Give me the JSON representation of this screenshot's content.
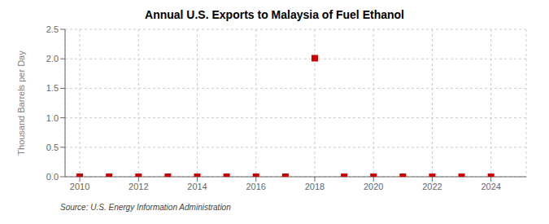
{
  "chart_data": {
    "type": "scatter",
    "title": "Annual U.S. Exports to Malaysia of Fuel Ethanol",
    "y_label": "Thousand Barrels per Day",
    "annotations": [
      "Source: U.S. Energy Information Administration"
    ],
    "x": [
      2010,
      2011,
      2012,
      2013,
      2014,
      2015,
      2016,
      2017,
      2018,
      2019,
      2020,
      2021,
      2022,
      2023,
      2024
    ],
    "values": [
      0.0,
      0.0,
      0.0,
      0.0,
      0.0,
      0.0,
      0.0,
      0.0,
      2.01,
      0.0,
      0.0,
      0.0,
      0.0,
      0.0,
      0.0
    ],
    "color": "#cc0000",
    "marker": "square",
    "xlim": [
      2009.5,
      2025.2
    ],
    "xticks": [
      2010,
      2012,
      2014,
      2016,
      2018,
      2020,
      2022,
      2024
    ],
    "ylim": [
      0.0,
      2.5
    ],
    "yticks": [
      {
        "value": 0,
        "label": "0.0"
      },
      0.5,
      {
        "value": 1,
        "label": "1.0"
      },
      1.5,
      {
        "value": 2,
        "label": "2.0"
      },
      2.5
    ],
    "grid": true
  }
}
